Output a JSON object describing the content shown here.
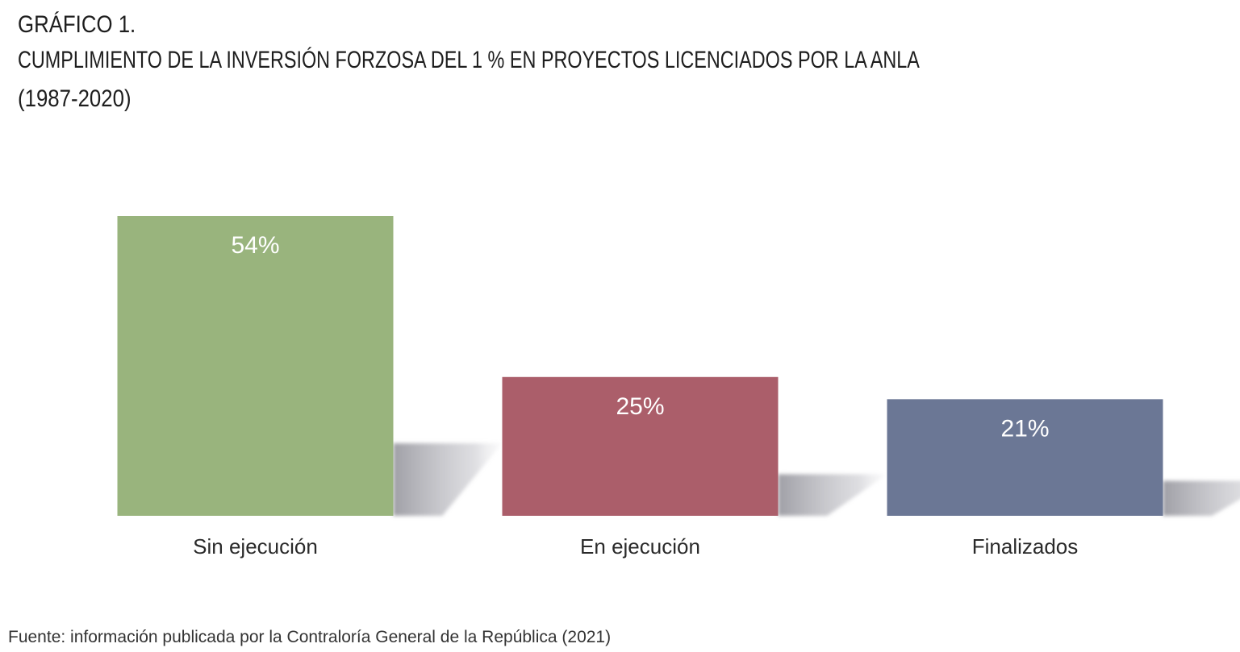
{
  "header": {
    "label": "GRÁFICO 1.",
    "title": "CUMPLIMIENTO DE LA INVERSIÓN FORZOSA DEL 1 % EN PROYECTOS LICENCIADOS POR LA ANLA",
    "subtitle": "(1987-2020)"
  },
  "chart_data": {
    "type": "bar",
    "title": "CUMPLIMIENTO DE LA INVERSIÓN FORZOSA DEL 1 % EN PROYECTOS LICENCIADOS POR LA ANLA",
    "categories": [
      "Sin ejecución",
      "En ejecución",
      "Finalizados"
    ],
    "values": [
      54,
      25,
      21
    ],
    "value_labels": [
      "54%",
      "25%",
      "21%"
    ],
    "colors": [
      "#99b47d",
      "#ab5e6a",
      "#6b7795"
    ],
    "xlabel": "",
    "ylabel": "",
    "ylim": [
      0,
      54
    ],
    "grid": false,
    "legend": "none"
  },
  "source": "Fuente: información publicada por la Contraloría General de la República (2021)"
}
